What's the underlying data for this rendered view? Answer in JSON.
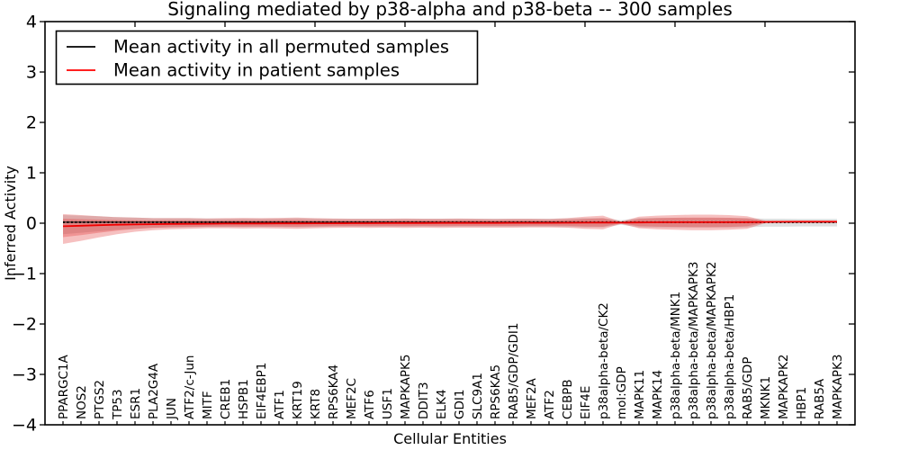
{
  "chart_data": {
    "type": "line",
    "title": "Signaling mediated by p38-alpha and p38-beta -- 300 samples",
    "xlabel": "Cellular Entities",
    "ylabel": "Inferred Activity",
    "ylim": [
      -4,
      4
    ],
    "ytick_values": [
      4,
      3,
      2,
      1,
      0,
      -1,
      -2,
      -3,
      -4
    ],
    "ytick_labels": [
      "4",
      "3",
      "2",
      "1",
      "0",
      "−1",
      "−2",
      "−3",
      "−4"
    ],
    "top_tick_interval": 5,
    "grid": false,
    "legend": {
      "position": "upper left",
      "entries": [
        {
          "label": "Mean activity in all permuted samples",
          "color": "#000000"
        },
        {
          "label": "Mean activity in patient samples",
          "color": "#ff0000"
        }
      ]
    },
    "categories": [
      "PPARGC1A",
      "NOS2",
      "PTGS2",
      "TP53",
      "ESR1",
      "PLA2G4A",
      "JUN",
      "ATF2/c-Jun",
      "MITF",
      "CREB1",
      "HSPB1",
      "EIF4EBP1",
      "ATF1",
      "KRT19",
      "KRT8",
      "RPS6KA4",
      "MEF2C",
      "ATF6",
      "USF1",
      "MAPKAPK5",
      "DDIT3",
      "ELK4",
      "GDI1",
      "SLC9A1",
      "RPS6KA5",
      "RAB5/GDP/GDI1",
      "MEF2A",
      "ATF2",
      "CEBPB",
      "EIF4E",
      "p38alpha-beta/CK2",
      "mol:GDP",
      "MAPK11",
      "MAPK14",
      "p38alpha-beta/MNK1",
      "p38alpha-beta/MAPKAPK3",
      "p38alpha-beta/MAPKAPK2",
      "p38alpha-beta/HBP1",
      "RAB5/GDP",
      "MKNK1",
      "MAPKAPK2",
      "HBP1",
      "RAB5A",
      "MAPKAPK3"
    ],
    "series": [
      {
        "name": "Mean activity in all permuted samples",
        "color": "#000000",
        "style": "solid-with-dots",
        "values": [
          0.02,
          0.02,
          0.02,
          0.02,
          0.02,
          0.02,
          0.02,
          0.02,
          0.02,
          0.02,
          0.02,
          0.02,
          0.02,
          0.02,
          0.02,
          0.02,
          0.02,
          0.02,
          0.02,
          0.02,
          0.02,
          0.02,
          0.02,
          0.02,
          0.02,
          0.02,
          0.02,
          0.02,
          0.02,
          0.02,
          0.02,
          0.02,
          0.02,
          0.02,
          0.02,
          0.02,
          0.02,
          0.02,
          0.02,
          0.02,
          0.02,
          0.02,
          0.02,
          0.02
        ]
      },
      {
        "name": "Mean activity in patient samples",
        "color": "#f00000",
        "style": "solid",
        "values": [
          -0.06,
          -0.05,
          -0.04,
          -0.03,
          -0.025,
          -0.02,
          -0.015,
          -0.012,
          -0.01,
          -0.008,
          -0.006,
          -0.005,
          -0.004,
          -0.003,
          -0.002,
          -0.001,
          0,
          0,
          0.002,
          0.003,
          0.004,
          0.005,
          0.005,
          0.006,
          0.006,
          0.007,
          0.008,
          0.008,
          0.009,
          0.01,
          0.012,
          0.01,
          0.015,
          0.018,
          0.02,
          0.02,
          0.02,
          0.02,
          0.022,
          0.025,
          0.028,
          0.03,
          0.03,
          0.03
        ]
      }
    ],
    "bands": [
      {
        "name": "permuted-samples-range",
        "color": "#808080",
        "opacity": 0.25,
        "top": [
          0.16,
          0.15,
          0.14,
          0.12,
          0.11,
          0.1,
          0.1,
          0.1,
          0.095,
          0.095,
          0.095,
          0.095,
          0.095,
          0.1,
          0.095,
          0.09,
          0.09,
          0.09,
          0.09,
          0.09,
          0.09,
          0.09,
          0.09,
          0.09,
          0.09,
          0.09,
          0.09,
          0.09,
          0.095,
          0.1,
          0.1,
          0.06,
          0.1,
          0.105,
          0.105,
          0.105,
          0.105,
          0.105,
          0.1,
          0.09,
          0.09,
          0.085,
          0.085,
          0.085
        ],
        "bottom": [
          -0.22,
          -0.19,
          -0.16,
          -0.13,
          -0.11,
          -0.09,
          -0.085,
          -0.08,
          -0.075,
          -0.075,
          -0.075,
          -0.075,
          -0.075,
          -0.08,
          -0.075,
          -0.07,
          -0.07,
          -0.07,
          -0.07,
          -0.07,
          -0.07,
          -0.07,
          -0.07,
          -0.07,
          -0.07,
          -0.07,
          -0.07,
          -0.07,
          -0.075,
          -0.08,
          -0.08,
          -0.03,
          -0.08,
          -0.085,
          -0.085,
          -0.085,
          -0.085,
          -0.085,
          -0.08,
          -0.07,
          -0.07,
          -0.065,
          -0.065,
          -0.065
        ]
      },
      {
        "name": "patient-samples-range",
        "color": "#e03030",
        "opacity": 0.3,
        "inner_fraction": 0.62,
        "top": [
          0.18,
          0.16,
          0.14,
          0.12,
          0.11,
          0.1,
          0.1,
          0.1,
          0.095,
          0.1,
          0.105,
          0.1,
          0.105,
          0.11,
          0.1,
          0.095,
          0.09,
          0.09,
          0.09,
          0.095,
          0.09,
          0.09,
          0.095,
          0.09,
          0.085,
          0.09,
          0.09,
          0.085,
          0.1,
          0.13,
          0.15,
          0.03,
          0.13,
          0.15,
          0.16,
          0.17,
          0.17,
          0.16,
          0.14,
          0.05,
          0.045,
          0.045,
          0.045,
          0.045
        ],
        "bottom": [
          -0.41,
          -0.35,
          -0.28,
          -0.22,
          -0.17,
          -0.14,
          -0.12,
          -0.11,
          -0.1,
          -0.1,
          -0.105,
          -0.1,
          -0.105,
          -0.11,
          -0.1,
          -0.095,
          -0.09,
          -0.095,
          -0.09,
          -0.095,
          -0.09,
          -0.095,
          -0.09,
          -0.09,
          -0.09,
          -0.09,
          -0.085,
          -0.085,
          -0.09,
          -0.11,
          -0.12,
          -0.01,
          -0.1,
          -0.12,
          -0.13,
          -0.14,
          -0.14,
          -0.13,
          -0.11,
          0.0,
          0.01,
          0.01,
          0.01,
          0.01
        ]
      }
    ]
  },
  "colors": {
    "background": "#ffffff",
    "axis": "#000000",
    "permuted_line": "#000000",
    "patient_line": "#f00000",
    "patient_band": "#e03030",
    "permuted_band": "#808080"
  }
}
